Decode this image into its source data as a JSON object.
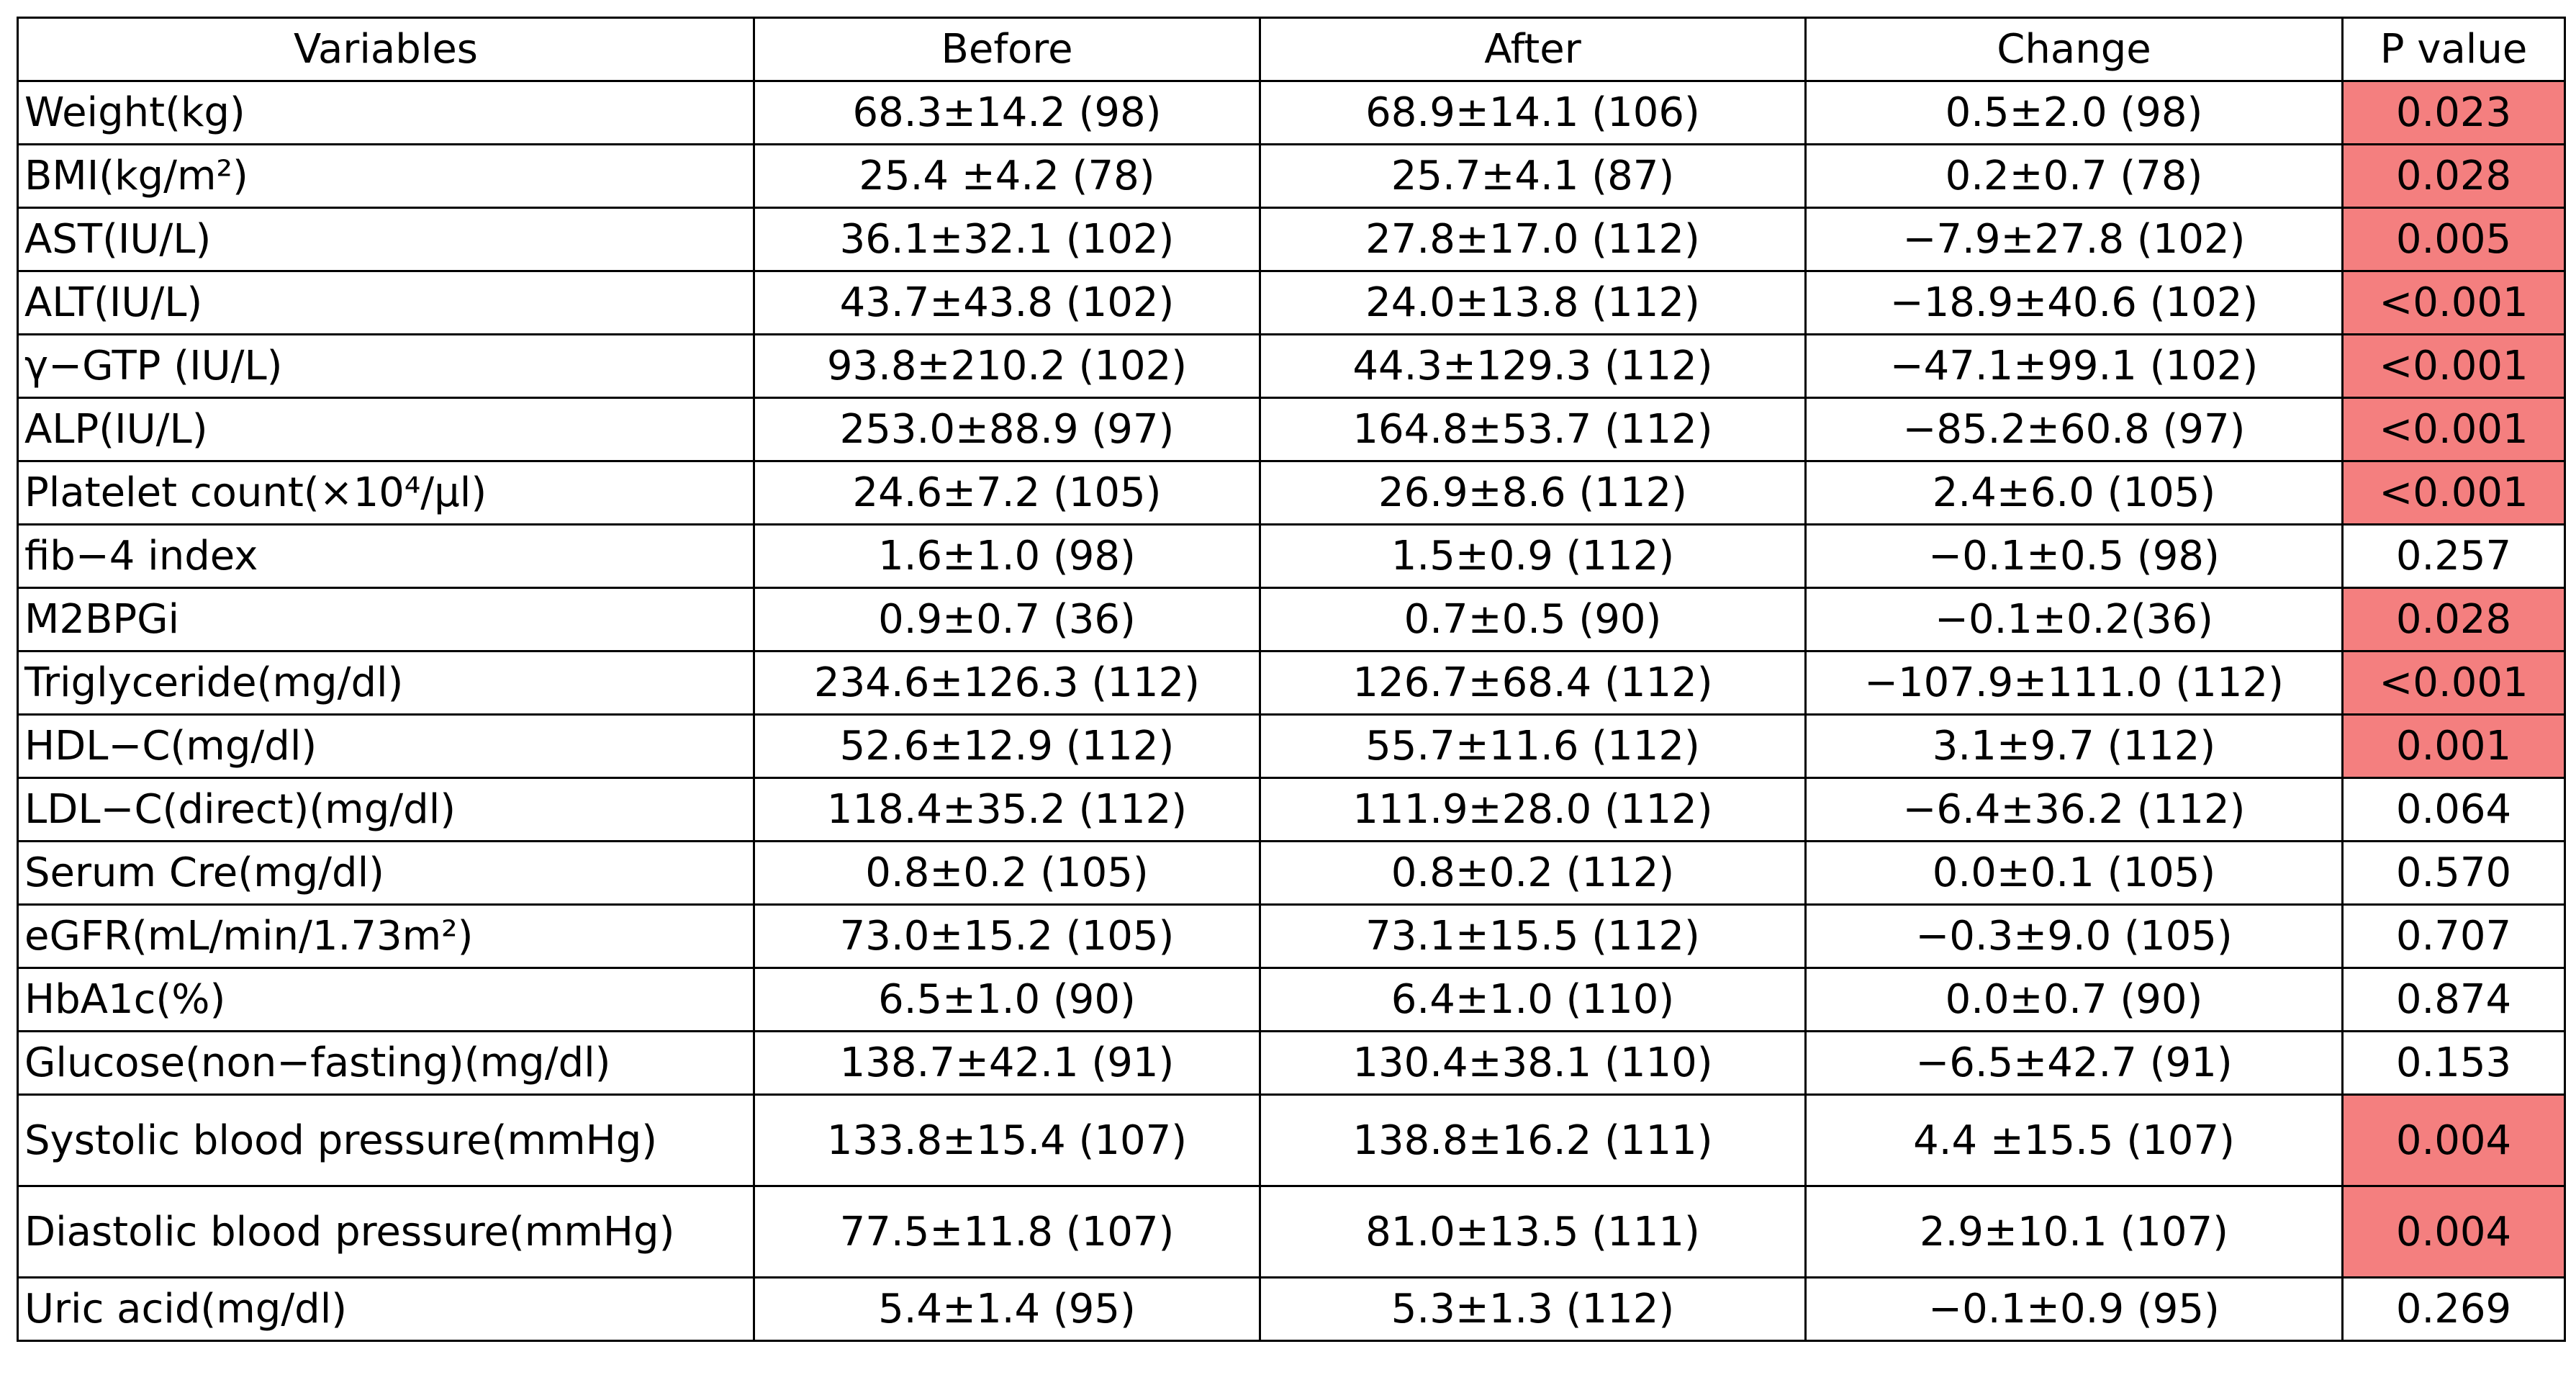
{
  "table": {
    "header": [
      "Variables",
      "Before",
      "After",
      "Change",
      "P value"
    ],
    "highlight_color": "#f47f7f",
    "rows": [
      {
        "cells": [
          "Weight(kg)",
          "68.3±14.2 (98)",
          "68.9±14.1 (106)",
          "0.5±2.0 (98)",
          "0.023"
        ],
        "highlight": true
      },
      {
        "cells": [
          "BMI(kg/m²)",
          "25.4 ±4.2 (78)",
          "25.7±4.1 (87)",
          "0.2±0.7 (78)",
          "0.028"
        ],
        "highlight": true
      },
      {
        "cells": [
          "AST(IU/L)",
          "36.1±32.1 (102)",
          "27.8±17.0 (112)",
          "−7.9±27.8 (102)",
          "0.005"
        ],
        "highlight": true
      },
      {
        "cells": [
          "ALT(IU/L)",
          "43.7±43.8 (102)",
          "24.0±13.8 (112)",
          "−18.9±40.6 (102)",
          "<0.001"
        ],
        "highlight": true
      },
      {
        "cells": [
          "γ−GTP (IU/L)",
          "93.8±210.2 (102)",
          "44.3±129.3 (112)",
          "−47.1±99.1 (102)",
          "<0.001"
        ],
        "highlight": true
      },
      {
        "cells": [
          "ALP(IU/L)",
          "253.0±88.9 (97)",
          "164.8±53.7 (112)",
          "−85.2±60.8 (97)",
          "<0.001"
        ],
        "highlight": true
      },
      {
        "cells": [
          "Platelet count(×10⁴/μl)",
          "24.6±7.2 (105)",
          "26.9±8.6 (112)",
          "2.4±6.0 (105)",
          "<0.001"
        ],
        "highlight": true
      },
      {
        "cells": [
          "fib−4 index",
          "1.6±1.0 (98)",
          "1.5±0.9 (112)",
          "−0.1±0.5 (98)",
          "0.257"
        ],
        "highlight": false
      },
      {
        "cells": [
          "M2BPGi",
          "0.9±0.7 (36)",
          "0.7±0.5 (90)",
          "−0.1±0.2(36)",
          "0.028"
        ],
        "highlight": true
      },
      {
        "cells": [
          "Triglyceride(mg/dl)",
          "234.6±126.3 (112)",
          "126.7±68.4 (112)",
          "−107.9±111.0 (112)",
          "<0.001"
        ],
        "highlight": true
      },
      {
        "cells": [
          "HDL−C(mg/dl)",
          "52.6±12.9 (112)",
          "55.7±11.6 (112)",
          "3.1±9.7 (112)",
          "0.001"
        ],
        "highlight": true
      },
      {
        "cells": [
          "LDL−C(direct)(mg/dl)",
          "118.4±35.2 (112)",
          "111.9±28.0 (112)",
          "−6.4±36.2 (112)",
          "0.064"
        ],
        "highlight": false
      },
      {
        "cells": [
          "Serum Cre(mg/dl)",
          "0.8±0.2 (105)",
          "0.8±0.2 (112)",
          "0.0±0.1 (105)",
          "0.570"
        ],
        "highlight": false
      },
      {
        "cells": [
          "eGFR(mL/min/1.73m²)",
          "73.0±15.2 (105)",
          "73.1±15.5 (112)",
          "−0.3±9.0 (105)",
          "0.707"
        ],
        "highlight": false
      },
      {
        "cells": [
          "HbA1c(%)",
          "6.5±1.0 (90)",
          "6.4±1.0 (110)",
          "0.0±0.7 (90)",
          "0.874"
        ],
        "highlight": false
      },
      {
        "cells": [
          "Glucose(non−fasting)(mg/dl)",
          "138.7±42.1 (91)",
          "130.4±38.1 (110)",
          "−6.5±42.7 (91)",
          "0.153"
        ],
        "highlight": false
      },
      {
        "cells": [
          "Systolic blood pressure(mmHg)",
          "133.8±15.4 (107)",
          "138.8±16.2 (111)",
          "4.4 ±15.5 (107)",
          "0.004"
        ],
        "highlight": true
      },
      {
        "cells": [
          "Diastolic blood pressure(mmHg)",
          "77.5±11.8 (107)",
          "81.0±13.5 (111)",
          "2.9±10.1 (107)",
          "0.004"
        ],
        "highlight": true
      },
      {
        "cells": [
          "Uric acid(mg/dl)",
          "5.4±1.4 (95)",
          "5.3±1.3 (112)",
          "−0.1±0.9 (95)",
          "0.269"
        ],
        "highlight": false
      }
    ]
  }
}
